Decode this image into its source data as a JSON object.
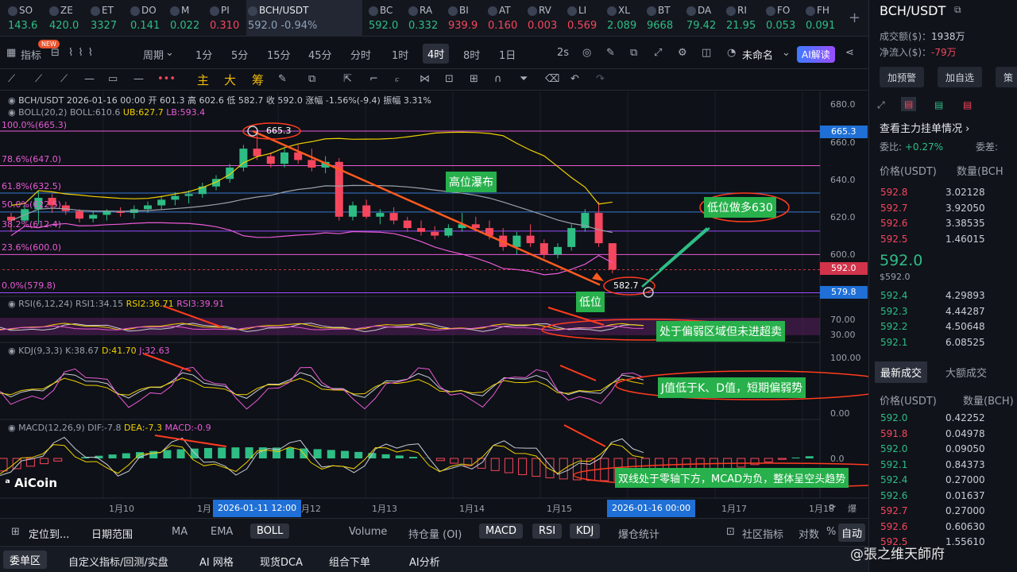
{
  "tickers": [
    {
      "name": "SO",
      "price": "143.6",
      "dir": "up"
    },
    {
      "name": "ZE",
      "price": "420.0",
      "dir": "up"
    },
    {
      "name": "ET",
      "price": "3327",
      "dir": "up"
    },
    {
      "name": "DO",
      "price": "0.141",
      "dir": "up"
    },
    {
      "name": "M",
      "price": "0.022",
      "dir": "up"
    },
    {
      "name": "PI",
      "price": "0.310",
      "dir": "dn"
    },
    {
      "name": "BCH/USDT",
      "price": "592.0  -0.94%",
      "dir": "act"
    },
    {
      "name": "BC",
      "price": "592.0",
      "dir": "up"
    },
    {
      "name": "RA",
      "price": "0.332",
      "dir": "up"
    },
    {
      "name": "BI",
      "price": "939.9",
      "dir": "dn"
    },
    {
      "name": "AT",
      "price": "0.160",
      "dir": "dn"
    },
    {
      "name": "RV",
      "price": "0.003",
      "dir": "dn"
    },
    {
      "name": "LI",
      "price": "0.569",
      "dir": "dn"
    },
    {
      "name": "XL",
      "price": "2.089",
      "dir": "up"
    },
    {
      "name": "BT",
      "price": "9668",
      "dir": "up"
    },
    {
      "name": "DA",
      "price": "79.42",
      "dir": "up"
    },
    {
      "name": "RI",
      "price": "21.95",
      "dir": "up"
    },
    {
      "name": "FO",
      "price": "0.053",
      "dir": "up"
    },
    {
      "name": "FH",
      "price": "0.091",
      "dir": "up"
    }
  ],
  "toolbar": {
    "indicators": "指标",
    "new_badge": "NEW",
    "period": "周期",
    "p1": "1分",
    "p5": "5分",
    "p15": "15分",
    "p45": "45分",
    "time": "分时",
    "h1": "1时",
    "h4": "4时",
    "h8": "8时",
    "d1": "1日",
    "s2": "2s",
    "unnamed": "未命名",
    "ai": "AI解读"
  },
  "drawbar": {
    "zhu": "主",
    "da": "大",
    "chou": "筹"
  },
  "legend": {
    "main": "BCH/USDT  2026-01-16 00:00  开 601.3  高 602.6  低 582.7  收 592.0  涨幅 -1.56%(-9.4)  振幅 3.31%",
    "boll": "BOLL(20,2)  BOLL:610.6",
    "ub": "UB:627.7",
    "lb": "LB:593.4",
    "rsi": "RSI(6,12,24)  RSI1:34.15",
    "rsi2": "RSI2:36.71",
    "rsi3": "RSI3:39.91",
    "kdj": "KDJ(9,3,3)  K:38.67",
    "kdj_d": "D:41.70",
    "kdj_j": "J:32.63",
    "macd": "MACD(12,26,9)  DIF:-7.8",
    "dea": "DEA:-7.3",
    "macd_v": "MACD:-0.9"
  },
  "fib": [
    "100.0%(665.3)",
    "78.6%(647.0)",
    "61.8%(632.5)",
    "50.0%(622.5)",
    "38.2%(612.4)",
    "23.6%(600.0)",
    "0.0%(579.8)"
  ],
  "yaxis": [
    "680.0",
    "660.0",
    "640.0",
    "620.0",
    "600.0",
    "70.00",
    "30.00",
    "100.00",
    "0.00",
    "0.0"
  ],
  "ybadges": {
    "high": "665.3",
    "last": "592.0",
    "low": "579.8"
  },
  "peak_label": "665.3",
  "low_label": "582.7",
  "annotations": {
    "waterfall": "高位瀑布",
    "long": "低位做多630",
    "low": "低位",
    "rsi_note": "处于偏弱区域但未进超卖",
    "kdj_note": "J值低于K、D值，短期偏弱势",
    "macd_note": "双线处于零轴下方，MCAD为负，整体呈空头趋势"
  },
  "xaxis": [
    "1月10",
    "1月",
    "1月12",
    "1月13",
    "1月14",
    "1月15",
    "1月17",
    "1月18"
  ],
  "xtags": [
    "2026-01-11 12:00",
    "2026-01-16 00:00"
  ],
  "logo": "AiCoin",
  "bottom": {
    "locate": "定位到...",
    "range": "日期范围",
    "ma": "MA",
    "ema": "EMA",
    "boll": "BOLL",
    "volume": "Volume",
    "oi": "持仓量 (OI)",
    "macd": "MACD",
    "rsi": "RSI",
    "kdj": "KDJ",
    "liq": "爆仓统计",
    "community": "社区指标",
    "log": "对数",
    "pct": "%",
    "auto": "自动"
  },
  "bottom2": {
    "orders": "委单区",
    "custom": "自定义指标/回测/实盘",
    "grid": "AI 网格",
    "dca": "现货DCA",
    "combo": "组合下单",
    "analysis": "AI分析"
  },
  "side": {
    "pair": "BCH/USDT",
    "vol_label": "成交额($)：",
    "vol": "1938万",
    "inflow_label": "净流入($)：",
    "inflow": "-79万",
    "b1": "加预警",
    "b2": "加自选",
    "b3": "策",
    "book_title": "查看主力挂单情况",
    "ratio_label": "委比:",
    "ratio": "+0.27%",
    "diff_label": "委差:",
    "col_price": "价格(USDT)",
    "col_qty": "数量(BCH",
    "last": "592.0",
    "last_usd": "$592.0",
    "tab1": "最新成交",
    "tab2": "大额成交",
    "col2_price": "价格(USDT)",
    "col2_qty": "数量(BCH)"
  },
  "asks": [
    [
      "592.8",
      "3.02128"
    ],
    [
      "592.7",
      "3.92050"
    ],
    [
      "592.6",
      "3.38535"
    ],
    [
      "592.5",
      "1.46015"
    ]
  ],
  "bids": [
    [
      "592.4",
      "4.29893"
    ],
    [
      "592.3",
      "4.44287"
    ],
    [
      "592.2",
      "4.50648"
    ],
    [
      "592.1",
      "6.08525"
    ]
  ],
  "trades": [
    [
      "592.0",
      "0.42252",
      "grn"
    ],
    [
      "591.8",
      "0.04978",
      "red"
    ],
    [
      "592.0",
      "0.09050",
      "grn"
    ],
    [
      "592.1",
      "0.84373",
      "grn"
    ],
    [
      "592.4",
      "0.27000",
      "grn"
    ],
    [
      "592.6",
      "0.01637",
      "grn"
    ],
    [
      "592.7",
      "0.27000",
      "red"
    ],
    [
      "592.6",
      "0.60630",
      "red"
    ],
    [
      "592.5",
      "1.55610",
      "red"
    ]
  ],
  "watermark": "@張之维天師府"
}
